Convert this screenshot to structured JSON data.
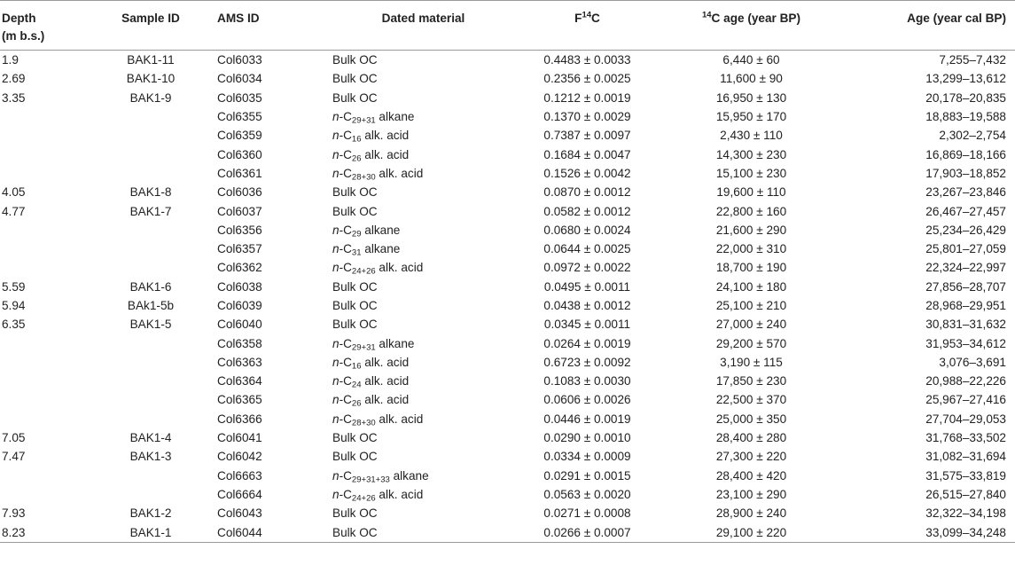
{
  "table": {
    "headers": {
      "depth": [
        "Depth",
        "(m b.s.)"
      ],
      "sample_id": "Sample ID",
      "ams_id": "AMS ID",
      "dated_material": "Dated material",
      "f14c": {
        "pre": "F",
        "sup": "14",
        "post": "C"
      },
      "c14_age": {
        "sup": "14",
        "post": "C age (year BP)"
      },
      "cal_age": "Age (year cal BP)"
    },
    "rows": [
      {
        "depth": "1.9",
        "sample": "BAK1-11",
        "ams": "Col6033",
        "mat": [
          {
            "t": "Bulk OC"
          }
        ],
        "f14c": "0.4483 ± 0.0033",
        "c14": "6,440 ± 60",
        "cal": "7,255–7,432"
      },
      {
        "depth": "2.69",
        "sample": "BAK1-10",
        "ams": "Col6034",
        "mat": [
          {
            "t": "Bulk OC"
          }
        ],
        "f14c": "0.2356 ± 0.0025",
        "c14": "11,600 ± 90",
        "cal": "13,299–13,612"
      },
      {
        "depth": "3.35",
        "sample": "BAK1-9",
        "ams": "Col6035",
        "mat": [
          {
            "t": "Bulk OC"
          }
        ],
        "f14c": "0.1212 ± 0.0019",
        "c14": "16,950 ± 130",
        "cal": "20,178–20,835"
      },
      {
        "depth": "",
        "sample": "",
        "ams": "Col6355",
        "mat": [
          {
            "i": "n"
          },
          {
            "t": "-C"
          },
          {
            "sub": "29+31"
          },
          {
            "t": " alkane"
          }
        ],
        "f14c": "0.1370 ± 0.0029",
        "c14": "15,950 ± 170",
        "cal": "18,883–19,588"
      },
      {
        "depth": "",
        "sample": "",
        "ams": "Col6359",
        "mat": [
          {
            "i": "n"
          },
          {
            "t": "-C"
          },
          {
            "sub": "16"
          },
          {
            "t": " alk. acid"
          }
        ],
        "f14c": "0.7387 ± 0.0097",
        "c14": "2,430 ± 110",
        "cal": "2,302–2,754"
      },
      {
        "depth": "",
        "sample": "",
        "ams": "Col6360",
        "mat": [
          {
            "i": "n"
          },
          {
            "t": "-C"
          },
          {
            "sub": "26"
          },
          {
            "t": " alk. acid"
          }
        ],
        "f14c": "0.1684 ± 0.0047",
        "c14": "14,300 ± 230",
        "cal": "16,869–18,166"
      },
      {
        "depth": "",
        "sample": "",
        "ams": "Col6361",
        "mat": [
          {
            "i": "n"
          },
          {
            "t": "-C"
          },
          {
            "sub": "28+30"
          },
          {
            "t": " alk. acid"
          }
        ],
        "f14c": "0.1526 ± 0.0042",
        "c14": "15,100 ± 230",
        "cal": "17,903–18,852"
      },
      {
        "depth": "4.05",
        "sample": "BAK1-8",
        "ams": "Col6036",
        "mat": [
          {
            "t": "Bulk OC"
          }
        ],
        "f14c": "0.0870 ± 0.0012",
        "c14": "19,600 ± 110",
        "cal": "23,267–23,846"
      },
      {
        "depth": "4.77",
        "sample": "BAK1-7",
        "ams": "Col6037",
        "mat": [
          {
            "t": "Bulk OC"
          }
        ],
        "f14c": "0.0582 ± 0.0012",
        "c14": "22,800 ± 160",
        "cal": "26,467–27,457"
      },
      {
        "depth": "",
        "sample": "",
        "ams": "Col6356",
        "mat": [
          {
            "i": "n"
          },
          {
            "t": "-C"
          },
          {
            "sub": "29"
          },
          {
            "t": " alkane"
          }
        ],
        "f14c": "0.0680 ± 0.0024",
        "c14": "21,600 ± 290",
        "cal": "25,234–26,429"
      },
      {
        "depth": "",
        "sample": "",
        "ams": "Col6357",
        "mat": [
          {
            "i": "n"
          },
          {
            "t": "-C"
          },
          {
            "sub": "31"
          },
          {
            "t": " alkane"
          }
        ],
        "f14c": "0.0644 ± 0.0025",
        "c14": "22,000 ± 310",
        "cal": "25,801–27,059"
      },
      {
        "depth": "",
        "sample": "",
        "ams": "Col6362",
        "mat": [
          {
            "i": "n"
          },
          {
            "t": "-C"
          },
          {
            "sub": "24+26"
          },
          {
            "t": " alk. acid"
          }
        ],
        "f14c": "0.0972 ± 0.0022",
        "c14": "18,700 ± 190",
        "cal": "22,324–22,997"
      },
      {
        "depth": "5.59",
        "sample": "BAK1-6",
        "ams": "Col6038",
        "mat": [
          {
            "t": "Bulk OC"
          }
        ],
        "f14c": "0.0495 ± 0.0011",
        "c14": "24,100 ± 180",
        "cal": "27,856–28,707"
      },
      {
        "depth": "5.94",
        "sample": "BAk1-5b",
        "ams": "Col6039",
        "mat": [
          {
            "t": "Bulk OC"
          }
        ],
        "f14c": "0.0438 ± 0.0012",
        "c14": "25,100 ± 210",
        "cal": "28,968–29,951"
      },
      {
        "depth": "6.35",
        "sample": "BAK1-5",
        "ams": "Col6040",
        "mat": [
          {
            "t": "Bulk OC"
          }
        ],
        "f14c": "0.0345 ± 0.0011",
        "c14": "27,000 ± 240",
        "cal": "30,831–31,632"
      },
      {
        "depth": "",
        "sample": "",
        "ams": "Col6358",
        "mat": [
          {
            "i": "n"
          },
          {
            "t": "-C"
          },
          {
            "sub": "29+31"
          },
          {
            "t": " alkane"
          }
        ],
        "f14c": "0.0264 ± 0.0019",
        "c14": "29,200 ± 570",
        "cal": "31,953–34,612"
      },
      {
        "depth": "",
        "sample": "",
        "ams": "Col6363",
        "mat": [
          {
            "i": "n"
          },
          {
            "t": "-C"
          },
          {
            "sub": "16"
          },
          {
            "t": " alk. acid"
          }
        ],
        "f14c": "0.6723 ± 0.0092",
        "c14": "3,190 ± 115",
        "cal": "3,076–3,691"
      },
      {
        "depth": "",
        "sample": "",
        "ams": "Col6364",
        "mat": [
          {
            "i": "n"
          },
          {
            "t": "-C"
          },
          {
            "sub": "24"
          },
          {
            "t": " alk. acid"
          }
        ],
        "f14c": "0.1083 ± 0.0030",
        "c14": "17,850 ± 230",
        "cal": "20,988–22,226"
      },
      {
        "depth": "",
        "sample": "",
        "ams": "Col6365",
        "mat": [
          {
            "i": "n"
          },
          {
            "t": "-C"
          },
          {
            "sub": "26"
          },
          {
            "t": " alk. acid"
          }
        ],
        "f14c": "0.0606 ± 0.0026",
        "c14": "22,500 ± 370",
        "cal": "25,967–27,416"
      },
      {
        "depth": "",
        "sample": "",
        "ams": "Col6366",
        "mat": [
          {
            "i": "n"
          },
          {
            "t": "-C"
          },
          {
            "sub": "28+30"
          },
          {
            "t": " alk. acid"
          }
        ],
        "f14c": "0.0446 ± 0.0019",
        "c14": "25,000 ± 350",
        "cal": "27,704–29,053"
      },
      {
        "depth": "7.05",
        "sample": "BAK1-4",
        "ams": "Col6041",
        "mat": [
          {
            "t": "Bulk OC"
          }
        ],
        "f14c": "0.0290 ± 0.0010",
        "c14": "28,400 ± 280",
        "cal": "31,768–33,502"
      },
      {
        "depth": "7.47",
        "sample": "BAK1-3",
        "ams": "Col6042",
        "mat": [
          {
            "t": "Bulk OC"
          }
        ],
        "f14c": "0.0334 ± 0.0009",
        "c14": "27,300 ± 220",
        "cal": "31,082–31,694"
      },
      {
        "depth": "",
        "sample": "",
        "ams": "Col6663",
        "mat": [
          {
            "i": "n"
          },
          {
            "t": "-C"
          },
          {
            "sub": "29+31+33"
          },
          {
            "t": " alkane"
          }
        ],
        "f14c": "0.0291 ± 0.0015",
        "c14": "28,400 ± 420",
        "cal": "31,575–33,819"
      },
      {
        "depth": "",
        "sample": "",
        "ams": "Col6664",
        "mat": [
          {
            "i": "n"
          },
          {
            "t": "-C"
          },
          {
            "sub": "24+26"
          },
          {
            "t": " alk. acid"
          }
        ],
        "f14c": "0.0563 ± 0.0020",
        "c14": "23,100 ± 290",
        "cal": "26,515–27,840"
      },
      {
        "depth": "7.93",
        "sample": "BAK1-2",
        "ams": "Col6043",
        "mat": [
          {
            "t": "Bulk OC"
          }
        ],
        "f14c": "0.0271 ± 0.0008",
        "c14": "28,900 ± 240",
        "cal": "32,322–34,198"
      },
      {
        "depth": "8.23",
        "sample": "BAK1-1",
        "ams": "Col6044",
        "mat": [
          {
            "t": "Bulk OC"
          }
        ],
        "f14c": "0.0266 ± 0.0007",
        "c14": "29,100 ± 220",
        "cal": "33,099–34,248"
      }
    ]
  }
}
